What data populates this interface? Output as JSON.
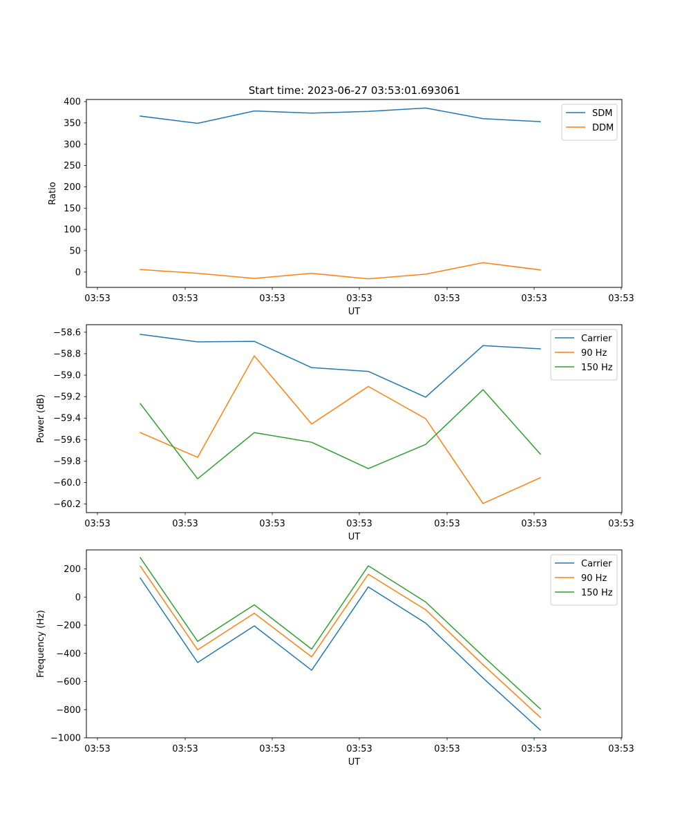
{
  "figure": {
    "title": "Start time: 2023-06-27 03:53:01.693061"
  },
  "colors": {
    "blue": "#1f77b4",
    "orange": "#ff7f0e",
    "green": "#2ca02c"
  },
  "chart_data": [
    {
      "type": "line",
      "title": "Start time: 2023-06-27 03:53:01.693061",
      "xlabel": "UT",
      "ylabel": "Ratio",
      "x_tick_labels": [
        "03:53",
        "03:53",
        "03:53",
        "03:53",
        "03:53",
        "03:53",
        "03:53"
      ],
      "y_ticks": [
        0,
        50,
        100,
        150,
        200,
        250,
        300,
        350,
        400
      ],
      "ylim": [
        -36,
        405
      ],
      "legend_position": "top-right",
      "grid": false,
      "series": [
        {
          "name": "SDM",
          "color": "#1f77b4",
          "values": [
            366,
            349,
            378,
            373,
            377,
            385,
            360,
            353
          ]
        },
        {
          "name": "DDM",
          "color": "#ff7f0e",
          "values": [
            6,
            -3,
            -15,
            -3,
            -16,
            -5,
            22,
            5
          ]
        }
      ]
    },
    {
      "type": "line",
      "title": "",
      "xlabel": "UT",
      "ylabel": "Power (dB)",
      "x_tick_labels": [
        "03:53",
        "03:53",
        "03:53",
        "03:53",
        "03:53",
        "03:53",
        "03:53"
      ],
      "y_ticks": [
        -60.2,
        -60.0,
        -59.8,
        -59.6,
        -59.4,
        -59.2,
        -59.0,
        -58.8,
        -58.6
      ],
      "y_tick_labels": [
        "−60.2",
        "−60.0",
        "−59.8",
        "−59.6",
        "−59.4",
        "−59.2",
        "−59.0",
        "−58.8",
        "−58.6"
      ],
      "ylim": [
        -60.28,
        -58.53
      ],
      "legend_position": "top-right",
      "grid": false,
      "series": [
        {
          "name": "Carrier",
          "color": "#1f77b4",
          "values": [
            -58.62,
            -58.69,
            -58.685,
            -58.93,
            -58.965,
            -59.205,
            -58.725,
            -58.755
          ]
        },
        {
          "name": "90 Hz",
          "color": "#ff7f0e",
          "values": [
            -59.535,
            -59.765,
            -58.82,
            -59.455,
            -59.105,
            -59.405,
            -60.195,
            -59.955
          ]
        },
        {
          "name": "150 Hz",
          "color": "#2ca02c",
          "values": [
            -59.265,
            -59.965,
            -59.535,
            -59.625,
            -59.87,
            -59.645,
            -59.135,
            -59.735
          ]
        }
      ]
    },
    {
      "type": "line",
      "title": "",
      "xlabel": "UT",
      "ylabel": "Frequency (Hz)",
      "x_tick_labels": [
        "03:53",
        "03:53",
        "03:53",
        "03:53",
        "03:53",
        "03:53",
        "03:53"
      ],
      "y_ticks": [
        -1000,
        -800,
        -600,
        -400,
        -200,
        0,
        200
      ],
      "y_tick_labels": [
        "−1000",
        "−800",
        "−600",
        "−400",
        "−200",
        "0",
        "200"
      ],
      "ylim": [
        -1000,
        335
      ],
      "legend_position": "top-right",
      "grid": false,
      "series": [
        {
          "name": "Carrier",
          "color": "#1f77b4",
          "values": [
            135,
            -465,
            -205,
            -520,
            72,
            -185,
            -575,
            -945
          ]
        },
        {
          "name": "90 Hz",
          "color": "#ff7f0e",
          "values": [
            220,
            -375,
            -115,
            -425,
            162,
            -90,
            -480,
            -855
          ]
        },
        {
          "name": "150 Hz",
          "color": "#2ca02c",
          "values": [
            280,
            -315,
            -55,
            -370,
            222,
            -35,
            -420,
            -795
          ]
        }
      ]
    }
  ]
}
